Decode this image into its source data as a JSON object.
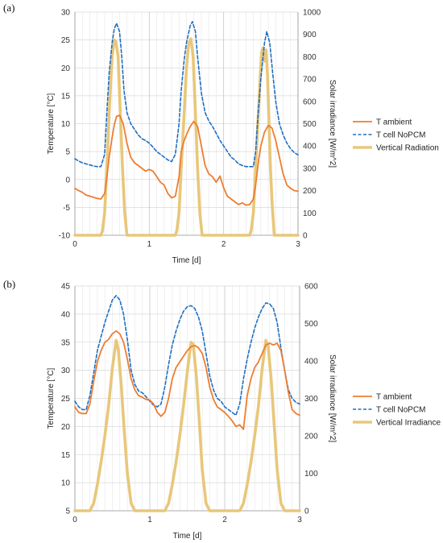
{
  "chart_data": [
    {
      "panel": "(a)",
      "type": "line",
      "xlabel": "Time [d]",
      "ylabel": "Temperature [°C]",
      "y2label": "Solar irradiance [W/m^2]",
      "xlim": [
        0,
        3
      ],
      "ylim": [
        -10,
        30
      ],
      "y2lim": [
        0,
        1000
      ],
      "xticks": [
        0,
        1,
        2,
        3
      ],
      "yticks": [
        -10,
        -5,
        0,
        5,
        10,
        15,
        20,
        25,
        30
      ],
      "y2ticks": [
        0,
        100,
        200,
        300,
        400,
        500,
        600,
        700,
        800,
        900,
        1000
      ],
      "grid": true,
      "legend": "right",
      "series": [
        {
          "name": "T ambient",
          "axis": "left",
          "color": "#ED7D31",
          "style": "solid",
          "x": [
            0,
            0.05,
            0.1,
            0.15,
            0.2,
            0.25,
            0.3,
            0.35,
            0.4,
            0.43,
            0.46,
            0.5,
            0.53,
            0.56,
            0.6,
            0.65,
            0.7,
            0.75,
            0.8,
            0.85,
            0.9,
            0.95,
            1.0,
            1.05,
            1.1,
            1.15,
            1.2,
            1.25,
            1.3,
            1.35,
            1.4,
            1.43,
            1.47,
            1.5,
            1.55,
            1.6,
            1.65,
            1.7,
            1.75,
            1.8,
            1.85,
            1.9,
            1.95,
            2.0,
            2.05,
            2.1,
            2.15,
            2.2,
            2.25,
            2.3,
            2.35,
            2.4,
            2.43,
            2.47,
            2.5,
            2.55,
            2.6,
            2.65,
            2.7,
            2.75,
            2.8,
            2.85,
            2.9,
            2.95,
            3.0
          ],
          "y": [
            -1.6,
            -2.0,
            -2.3,
            -2.8,
            -3.0,
            -3.2,
            -3.4,
            -3.5,
            -2.5,
            0.5,
            4.0,
            7.5,
            9.8,
            11.3,
            11.5,
            10.0,
            6.5,
            4.0,
            3.0,
            2.5,
            2.0,
            1.5,
            1.8,
            1.5,
            0.5,
            -0.5,
            -1.0,
            -2.5,
            -3.3,
            -3.0,
            0.5,
            5.0,
            7.0,
            8.0,
            9.5,
            10.4,
            9.5,
            6.0,
            2.5,
            1.0,
            0.5,
            -0.5,
            0.6,
            -1.5,
            -3.0,
            -3.5,
            -4.0,
            -4.5,
            -4.2,
            -4.6,
            -4.5,
            -3.5,
            -1.0,
            3.5,
            6.0,
            8.5,
            9.7,
            9.2,
            7.0,
            4.0,
            1.0,
            -1.0,
            -1.6,
            -2.0,
            -2.1
          ]
        },
        {
          "name": "T cell NoPCM",
          "axis": "left",
          "color": "#1F6FC0",
          "style": "dashed",
          "x": [
            0,
            0.05,
            0.1,
            0.15,
            0.2,
            0.25,
            0.3,
            0.35,
            0.4,
            0.43,
            0.46,
            0.5,
            0.53,
            0.56,
            0.6,
            0.63,
            0.66,
            0.7,
            0.75,
            0.8,
            0.85,
            0.9,
            0.95,
            1.0,
            1.05,
            1.1,
            1.15,
            1.2,
            1.25,
            1.3,
            1.35,
            1.4,
            1.43,
            1.47,
            1.5,
            1.55,
            1.58,
            1.62,
            1.65,
            1.7,
            1.75,
            1.8,
            1.85,
            1.9,
            1.95,
            2.0,
            2.05,
            2.1,
            2.15,
            2.2,
            2.25,
            2.3,
            2.35,
            2.4,
            2.43,
            2.46,
            2.5,
            2.55,
            2.58,
            2.62,
            2.66,
            2.7,
            2.75,
            2.8,
            2.85,
            2.9,
            2.95,
            3.0
          ],
          "y": [
            3.7,
            3.3,
            3.0,
            2.8,
            2.6,
            2.4,
            2.3,
            2.3,
            4.5,
            12.0,
            19.0,
            24.5,
            27.0,
            28.0,
            26.5,
            22.0,
            16.0,
            12.0,
            10.0,
            9.0,
            8.0,
            7.3,
            7.0,
            6.5,
            5.8,
            5.0,
            4.5,
            4.0,
            3.5,
            3.2,
            4.5,
            10.0,
            16.0,
            21.5,
            24.5,
            27.5,
            28.3,
            26.5,
            22.0,
            15.5,
            12.0,
            10.5,
            9.5,
            8.3,
            7.0,
            6.0,
            5.0,
            4.0,
            3.5,
            2.8,
            2.5,
            2.3,
            2.3,
            2.3,
            5.0,
            11.0,
            18.0,
            24.5,
            26.5,
            24.5,
            19.0,
            14.0,
            10.0,
            8.0,
            6.5,
            5.5,
            4.8,
            4.4
          ]
        },
        {
          "name": "Vertical Radiation",
          "axis": "right",
          "color": "#E8C77A",
          "style": "thick",
          "x": [
            0,
            0.35,
            0.37,
            0.4,
            0.43,
            0.46,
            0.5,
            0.53,
            0.55,
            0.58,
            0.61,
            0.64,
            0.67,
            0.7,
            1.0,
            1.35,
            1.37,
            1.4,
            1.43,
            1.47,
            1.5,
            1.53,
            1.56,
            1.59,
            1.62,
            1.65,
            1.68,
            1.71,
            2.0,
            2.35,
            2.37,
            2.4,
            2.43,
            2.46,
            2.49,
            2.51,
            2.53,
            2.55,
            2.57,
            2.59,
            2.61,
            2.63,
            2.65,
            2.68,
            3.0
          ],
          "y": [
            0,
            0,
            20,
            100,
            300,
            550,
            800,
            875,
            870,
            800,
            550,
            300,
            100,
            0,
            0,
            0,
            20,
            100,
            300,
            550,
            750,
            860,
            880,
            800,
            550,
            300,
            100,
            0,
            0,
            0,
            20,
            100,
            300,
            500,
            700,
            820,
            840,
            780,
            830,
            720,
            500,
            300,
            150,
            0,
            0
          ]
        }
      ]
    },
    {
      "panel": "(b)",
      "type": "line",
      "xlabel": "Time [d]",
      "ylabel": "Temperature [°C]",
      "y2label": "Solar irradiance [W/m^2]",
      "xlim": [
        0,
        3
      ],
      "ylim": [
        5,
        45
      ],
      "y2lim": [
        0,
        600
      ],
      "xticks": [
        0,
        1,
        2,
        3
      ],
      "yticks": [
        5,
        10,
        15,
        20,
        25,
        30,
        35,
        40,
        45
      ],
      "y2ticks": [
        0,
        100,
        200,
        300,
        400,
        500,
        600
      ],
      "grid": true,
      "legend": "right",
      "series": [
        {
          "name": "T ambient",
          "axis": "left",
          "color": "#ED7D31",
          "style": "solid",
          "x": [
            0,
            0.05,
            0.1,
            0.15,
            0.2,
            0.25,
            0.3,
            0.35,
            0.4,
            0.45,
            0.5,
            0.55,
            0.6,
            0.65,
            0.7,
            0.75,
            0.8,
            0.85,
            0.9,
            0.95,
            1.0,
            1.05,
            1.1,
            1.15,
            1.2,
            1.25,
            1.3,
            1.35,
            1.4,
            1.45,
            1.5,
            1.55,
            1.6,
            1.65,
            1.7,
            1.75,
            1.8,
            1.85,
            1.9,
            1.95,
            2.0,
            2.05,
            2.1,
            2.15,
            2.2,
            2.25,
            2.3,
            2.35,
            2.4,
            2.45,
            2.5,
            2.55,
            2.6,
            2.65,
            2.7,
            2.75,
            2.8,
            2.85,
            2.9,
            2.95,
            3.0
          ],
          "y": [
            23.5,
            22.5,
            22.3,
            22.3,
            24.0,
            28.0,
            31.5,
            33.5,
            35.0,
            35.5,
            36.5,
            37.0,
            36.5,
            35.0,
            32.0,
            28.5,
            26.5,
            25.5,
            25.2,
            24.8,
            24.7,
            24.0,
            22.5,
            21.8,
            22.5,
            25.0,
            28.5,
            30.5,
            31.5,
            32.5,
            33.5,
            34.2,
            34.4,
            34.0,
            33.0,
            30.5,
            27.0,
            24.8,
            23.5,
            23.0,
            22.5,
            21.8,
            21.0,
            20.0,
            20.3,
            19.5,
            25.5,
            28.5,
            30.5,
            31.5,
            33.0,
            34.5,
            34.8,
            34.5,
            34.8,
            33.5,
            30.0,
            26.0,
            23.0,
            22.3,
            22.0
          ]
        },
        {
          "name": "T cell NoPCM",
          "axis": "left",
          "color": "#1F6FC0",
          "style": "dashed",
          "x": [
            0,
            0.05,
            0.1,
            0.15,
            0.2,
            0.25,
            0.3,
            0.35,
            0.4,
            0.45,
            0.5,
            0.55,
            0.6,
            0.65,
            0.7,
            0.75,
            0.8,
            0.85,
            0.9,
            0.95,
            1.0,
            1.05,
            1.1,
            1.15,
            1.2,
            1.25,
            1.3,
            1.35,
            1.4,
            1.45,
            1.5,
            1.55,
            1.6,
            1.65,
            1.7,
            1.75,
            1.8,
            1.85,
            1.9,
            1.95,
            2.0,
            2.05,
            2.1,
            2.15,
            2.2,
            2.25,
            2.3,
            2.35,
            2.4,
            2.45,
            2.5,
            2.55,
            2.6,
            2.65,
            2.7,
            2.75,
            2.8,
            2.85,
            2.9,
            2.95,
            3.0
          ],
          "y": [
            24.5,
            23.5,
            23.0,
            23.0,
            25.5,
            29.5,
            33.5,
            36.0,
            38.5,
            40.5,
            42.5,
            43.3,
            42.5,
            40.0,
            35.5,
            30.0,
            27.5,
            26.3,
            26.0,
            25.3,
            24.5,
            23.8,
            23.5,
            24.0,
            27.0,
            31.0,
            34.5,
            37.0,
            39.0,
            40.5,
            41.3,
            41.5,
            41.0,
            39.5,
            37.0,
            33.0,
            29.0,
            26.5,
            25.0,
            24.5,
            23.5,
            23.0,
            22.5,
            22.0,
            24.0,
            28.5,
            32.0,
            35.0,
            37.5,
            39.5,
            41.0,
            42.0,
            41.8,
            41.0,
            38.5,
            34.0,
            30.0,
            26.5,
            25.0,
            24.3,
            24.0
          ]
        },
        {
          "name": "Vertical Irradiance",
          "axis": "right",
          "color": "#E8C77A",
          "style": "thick",
          "x": [
            0,
            0.2,
            0.25,
            0.3,
            0.35,
            0.4,
            0.45,
            0.5,
            0.55,
            0.58,
            0.62,
            0.66,
            0.7,
            0.75,
            0.8,
            1.0,
            1.2,
            1.25,
            1.3,
            1.35,
            1.4,
            1.45,
            1.5,
            1.55,
            1.58,
            1.62,
            1.66,
            1.7,
            1.75,
            1.8,
            2.0,
            2.2,
            2.25,
            2.3,
            2.35,
            2.4,
            2.45,
            2.5,
            2.55,
            2.58,
            2.62,
            2.66,
            2.7,
            2.75,
            2.8,
            3.0
          ],
          "y": [
            0,
            0,
            20,
            70,
            130,
            200,
            280,
            380,
            455,
            430,
            330,
            210,
            100,
            20,
            0,
            0,
            0,
            20,
            70,
            130,
            200,
            280,
            370,
            450,
            445,
            360,
            240,
            110,
            20,
            0,
            0,
            0,
            20,
            70,
            130,
            200,
            280,
            380,
            455,
            440,
            350,
            230,
            110,
            20,
            0,
            0
          ]
        }
      ]
    }
  ]
}
